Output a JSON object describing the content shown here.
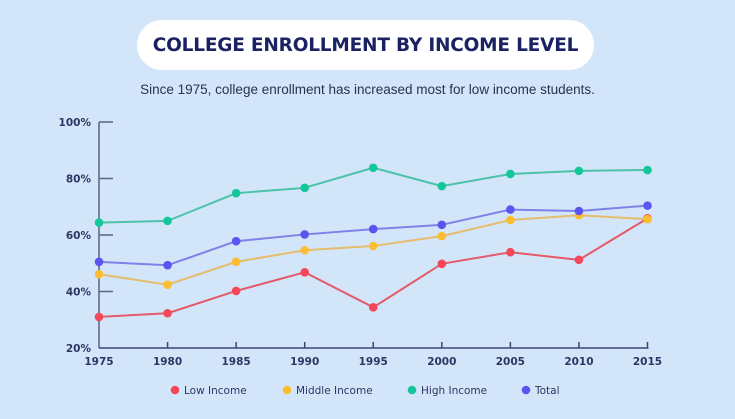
{
  "chart_data": {
    "type": "line",
    "title": "COLLEGE ENROLLMENT BY INCOME LEVEL",
    "subtitle": "Since 1975, college enrollment has increased most for low income students.",
    "xlabel": "",
    "ylabel": "",
    "x": [
      1975,
      1980,
      1985,
      1990,
      1995,
      2000,
      2005,
      2010,
      2015
    ],
    "x_tick_labels": [
      "1975",
      "1980",
      "1985",
      "1990",
      "1995",
      "2000",
      "2005",
      "2010",
      "2015"
    ],
    "ylim": [
      20,
      100
    ],
    "y_ticks": [
      20,
      40,
      60,
      80,
      100
    ],
    "y_tick_labels": [
      "20%",
      "40%",
      "60%",
      "80%",
      "100%"
    ],
    "grid": false,
    "legend_position": "bottom",
    "series": [
      {
        "name": "Low Income",
        "color": "#f4485a",
        "line_color": "#e35a68",
        "values": [
          31.0,
          32.3,
          40.2,
          46.8,
          34.4,
          49.8,
          53.9,
          51.2,
          65.9
        ]
      },
      {
        "name": "Middle Income",
        "color": "#fcbd31",
        "line_color": "#e4bd6c",
        "values": [
          46.1,
          42.4,
          50.5,
          54.6,
          56.1,
          59.6,
          65.3,
          67.0,
          65.6
        ]
      },
      {
        "name": "High Income",
        "color": "#12c89b",
        "line_color": "#4cc3a8",
        "values": [
          64.4,
          65.0,
          74.8,
          76.7,
          83.8,
          77.3,
          81.6,
          82.7,
          83.0
        ]
      },
      {
        "name": "Total",
        "color": "#5a55f1",
        "line_color": "#7f80e8",
        "values": [
          50.5,
          49.3,
          57.8,
          60.2,
          62.1,
          63.6,
          69.0,
          68.5,
          70.4
        ]
      }
    ]
  }
}
